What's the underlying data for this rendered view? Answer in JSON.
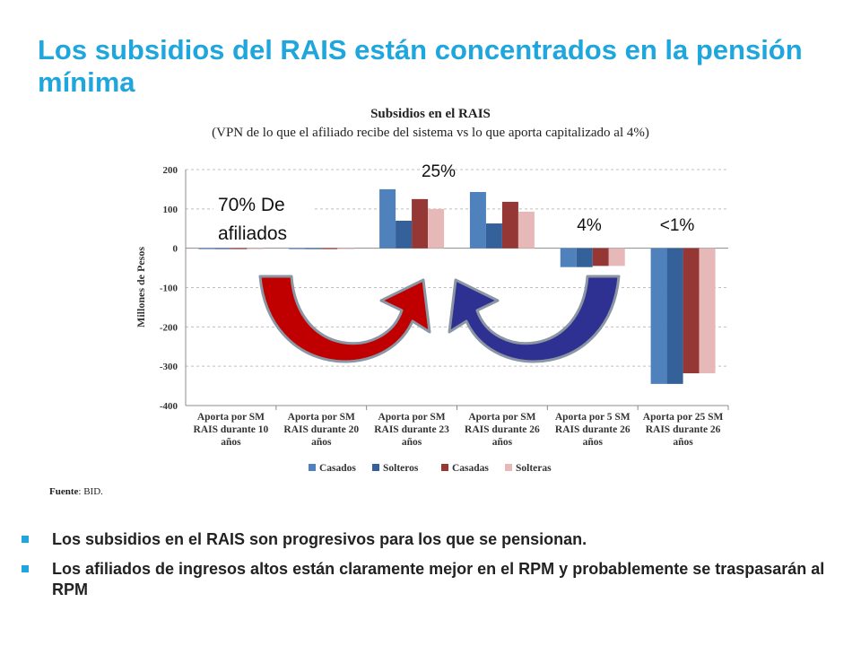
{
  "slide": {
    "title": "Los subsidios del RAIS están concentrados en la pensión mínima",
    "source_label": "Fuente",
    "source_text": ": BID.",
    "bullets": [
      "Los subsidios en el RAIS son progresivos para los que se pensionan.",
      "Los afiliados de ingresos altos están claramente mejor en el RPM y probablemente se traspasarán al RPM"
    ]
  },
  "chart_data": {
    "type": "bar",
    "title": "Subsidios en el RAIS",
    "subtitle": "(VPN de lo que el afiliado recibe del sistema vs lo que aporta capitalizado al 4%)",
    "ylabel": "Millones de Pesos",
    "ylim": [
      -400,
      200
    ],
    "yticks": [
      -400,
      -300,
      -200,
      -100,
      0,
      100,
      200
    ],
    "grid": true,
    "legend_position": "bottom",
    "categories": [
      [
        "Aporta por SM",
        "RAIS durante 10",
        "años"
      ],
      [
        "Aporta por SM",
        "RAIS durante 20",
        "años"
      ],
      [
        "Aporta por SM",
        "RAIS durante 23",
        "años"
      ],
      [
        "Aporta por SM",
        "RAIS durante 26",
        "años"
      ],
      [
        "Aporta por 5 SM",
        "RAIS durante 26",
        "años"
      ],
      [
        "Aporta por 25 SM",
        "RAIS durante 26",
        "años"
      ]
    ],
    "series": [
      {
        "name": "Casados",
        "color": "#4f81bd",
        "values": [
          -2,
          -2,
          150,
          143,
          -48,
          -345
        ]
      },
      {
        "name": "Solteros",
        "color": "#35619a",
        "values": [
          -2,
          -2,
          70,
          63,
          -48,
          -345
        ]
      },
      {
        "name": "Casadas",
        "color": "#953735",
        "values": [
          -2,
          -2,
          125,
          118,
          -45,
          -318
        ]
      },
      {
        "name": "Solteras",
        "color": "#e6b9b8",
        "values": [
          -2,
          -2,
          100,
          93,
          -45,
          -318
        ]
      }
    ],
    "annotations": [
      {
        "text": "70% De",
        "text2": "afiliados"
      },
      {
        "text": "25%"
      },
      {
        "text": "4%"
      },
      {
        "text": "<1%"
      }
    ],
    "arrow_colors": [
      "#c00000",
      "#2e3192"
    ]
  }
}
